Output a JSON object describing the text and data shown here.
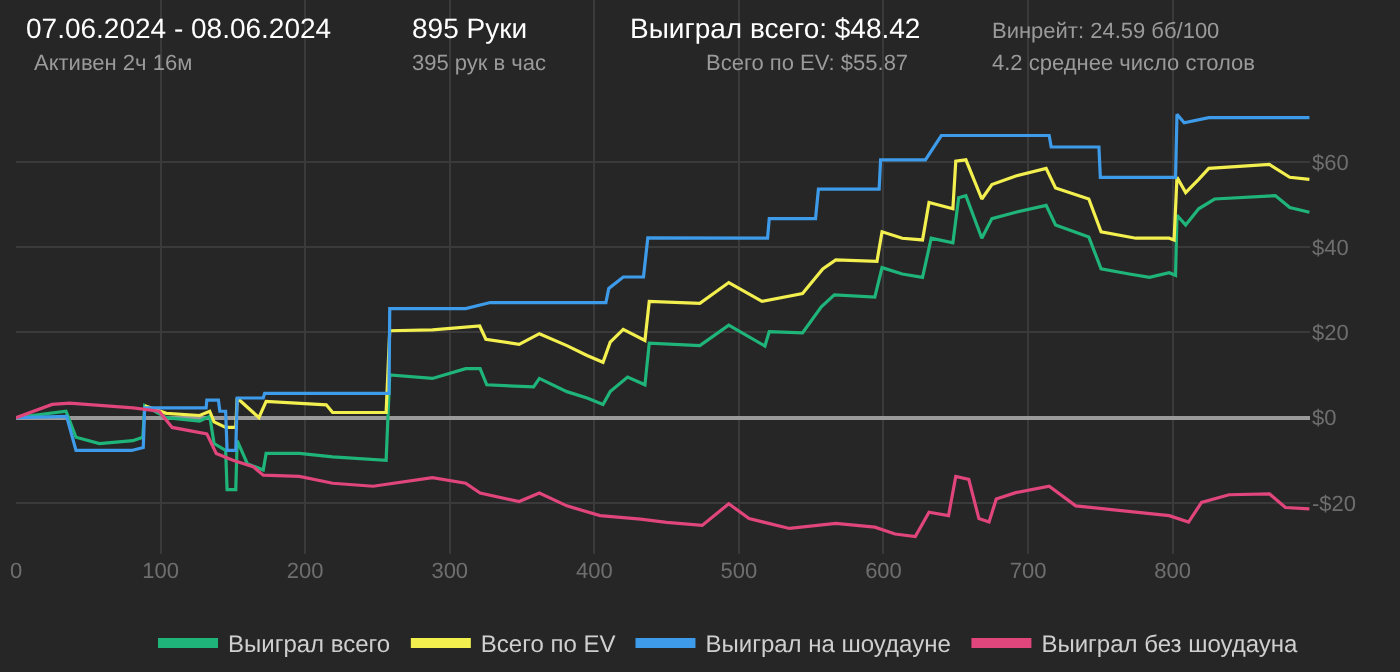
{
  "chart_data": {
    "type": "line",
    "title": "07.06.2024 - 08.06.2024",
    "annotations": [
      "Активен 2ч 16м",
      "895 Руки",
      "395 рук в час",
      "Выиграл всего: $48.42",
      "Всего по EV: $55.87",
      "Винрейт: 24.59 бб/100",
      "4.2 среднее число столов"
    ],
    "xlim": [
      0,
      895
    ],
    "ylim": [
      -32,
      98
    ],
    "xticks": [
      0,
      100,
      200,
      300,
      400,
      500,
      600,
      700,
      800
    ],
    "yticks": [
      {
        "value": -20,
        "label": "-$20"
      },
      {
        "value": 0,
        "label": "$0"
      },
      {
        "value": 20,
        "label": "$20"
      },
      {
        "value": 40,
        "label": "$40"
      },
      {
        "value": 60,
        "label": "$60"
      }
    ],
    "grid": true,
    "legend": "bottom",
    "marker": "none",
    "line_style": "solid",
    "series": [
      {
        "name": "Выиграл всего",
        "color": "#1fb57a",
        "x": [
          0,
          34.6,
          41.5,
          57.7,
          80.8,
          87.7,
          89,
          104,
          127,
          134,
          137,
          145,
          146,
          152,
          153,
          160,
          171,
          173,
          196,
          219,
          256,
          258.5,
          288,
          311,
          321,
          325.6,
          358,
          362,
          381,
          395,
          406,
          411,
          423,
          435,
          438,
          473,
          493,
          518,
          521,
          544,
          557,
          566,
          594,
          599,
          613,
          627,
          633,
          648,
          652,
          657,
          668,
          675,
          691.5,
          712.5,
          719,
          742,
          750.5,
          770,
          784,
          797.6,
          802,
          803,
          809,
          818,
          829,
          871,
          881,
          894.6
        ],
        "values": [
          0,
          1.5,
          -4.6,
          -6.1,
          -5.4,
          -4.6,
          2.8,
          0,
          -0.8,
          0.3,
          -6.1,
          -7.7,
          -16.9,
          -16.9,
          -5.4,
          -10.8,
          -12.3,
          -8.4,
          -8.4,
          -9.2,
          -10,
          10,
          9.2,
          11.5,
          11.5,
          7.7,
          7.2,
          9.2,
          6.1,
          4.6,
          3.1,
          6.1,
          9.5,
          7.7,
          17.5,
          16.9,
          21.7,
          16.8,
          20.2,
          19.9,
          26,
          28.8,
          28.3,
          35.2,
          33.7,
          32.9,
          42.1,
          41,
          51.6,
          52.1,
          42.1,
          46.7,
          48.2,
          49.8,
          45.2,
          42.4,
          34.9,
          33.7,
          32.9,
          34,
          33.4,
          47.5,
          45.2,
          49,
          51.3,
          52.1,
          49.3,
          48.2
        ]
      },
      {
        "name": "Всего по EV",
        "color": "#f2ef4f",
        "x": [
          89,
          104,
          127,
          134,
          137,
          145,
          152,
          153,
          168,
          173,
          214.6,
          219,
          256,
          258.5,
          288,
          320.7,
          325,
          348,
          362,
          381,
          395,
          406,
          411,
          420,
          435,
          438,
          473,
          493,
          516,
          544,
          558,
          567,
          595.5,
          599,
          613,
          627,
          631.5,
          648,
          650,
          657,
          668,
          675,
          691.5,
          712.5,
          719,
          742,
          750.5,
          774.6,
          797.6,
          801,
          803,
          809,
          818,
          825,
          867,
          881,
          894.6
        ],
        "values": [
          2.8,
          1,
          0.5,
          1.5,
          -1,
          -2.3,
          -2.3,
          4.6,
          0,
          3.8,
          3,
          1.2,
          1.2,
          20.4,
          20.6,
          21.5,
          18.4,
          17.2,
          19.7,
          16.9,
          14.6,
          13,
          17.7,
          20.7,
          18.1,
          27.3,
          26.8,
          31.7,
          27.3,
          29.1,
          34.9,
          37,
          36.7,
          43.6,
          42.1,
          41.7,
          50.5,
          49,
          60.2,
          60.5,
          51.3,
          54.7,
          56.7,
          58.5,
          53.9,
          51.3,
          43.6,
          42.1,
          42.1,
          41.7,
          56.4,
          52.8,
          55.9,
          58.5,
          59.4,
          56.4,
          55.9
        ]
      },
      {
        "name": "Выиграл на шоудауне",
        "color": "#3d9be9",
        "x": [
          0,
          35,
          41.5,
          80,
          88,
          89,
          131.5,
          132,
          140,
          141,
          145,
          146,
          152,
          153,
          171,
          172,
          258,
          258.5,
          311,
          328,
          408,
          410,
          420,
          434,
          437,
          519.8,
          521,
          553,
          555,
          597,
          598,
          629,
          640,
          714.6,
          716,
          749,
          750,
          802,
          803,
          808,
          825,
          894.6
        ],
        "values": [
          0,
          0.3,
          -7.7,
          -7.7,
          -7,
          2.3,
          2.3,
          4.1,
          4.1,
          1.5,
          1.5,
          -7.7,
          -7.7,
          4.6,
          4.6,
          5.7,
          5.7,
          25.6,
          25.6,
          27,
          27,
          30.3,
          33,
          33,
          42.2,
          42.1,
          46.7,
          46.7,
          53.6,
          53.6,
          60.5,
          60.5,
          66.2,
          66.2,
          63.5,
          63.5,
          56.4,
          56.4,
          71.2,
          69.2,
          70.4,
          70.4
        ]
      },
      {
        "name": "Выиграл без шоудауна",
        "color": "#e0457b",
        "x": [
          0,
          25,
          37,
          81,
          99,
          108,
          132,
          138.5,
          150,
          164,
          171,
          196,
          219,
          247,
          288,
          311,
          321,
          348,
          362,
          381,
          404,
          432,
          450,
          474.6,
          493,
          507,
          535,
          567,
          594,
          608,
          622,
          631.5,
          645,
          650,
          659,
          666,
          673,
          678,
          691.5,
          714.6,
          733,
          761,
          797.6,
          811,
          820,
          839,
          867,
          878,
          894.6
        ],
        "values": [
          0,
          3.1,
          3.4,
          2.3,
          1.5,
          -2.3,
          -3.8,
          -8.4,
          -10,
          -11.5,
          -13.5,
          -13.8,
          -15.4,
          -16.1,
          -14.1,
          -15.4,
          -17.7,
          -19.7,
          -17.7,
          -20.7,
          -23,
          -23.8,
          -24.6,
          -25.3,
          -20.2,
          -23.7,
          -26,
          -24.8,
          -25.7,
          -27.3,
          -27.9,
          -22.2,
          -23,
          -13.8,
          -14.5,
          -23.7,
          -24.5,
          -19.1,
          -17.6,
          -16.1,
          -20.7,
          -21.7,
          -23,
          -24.5,
          -19.9,
          -18.1,
          -17.9,
          -21.1,
          -21.4
        ]
      }
    ]
  }
}
